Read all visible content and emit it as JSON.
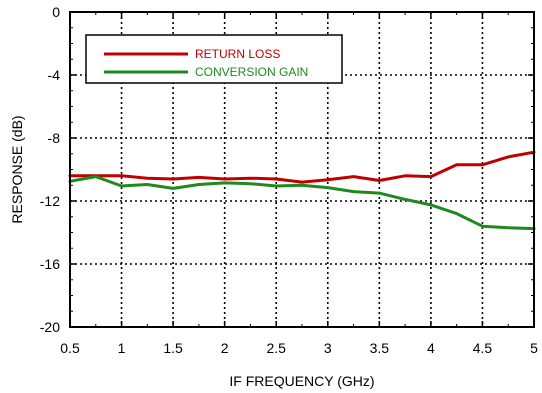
{
  "chart_data": {
    "type": "line",
    "title": "",
    "xlabel": "IF FREQUENCY (GHz)",
    "ylabel": "RESPONSE (dB)",
    "xlim": [
      0.5,
      5
    ],
    "ylim": [
      -20,
      0
    ],
    "xticks": [
      0.5,
      1,
      1.5,
      2,
      2.5,
      3,
      3.5,
      4,
      4.5,
      5
    ],
    "xtick_labels": [
      "0.5",
      "1",
      "1.5",
      "2",
      "2.5",
      "3",
      "3.5",
      "4",
      "4.5",
      "5"
    ],
    "yticks": [
      0,
      -4,
      -8,
      -12,
      -16,
      -20
    ],
    "ytick_labels": [
      "0",
      "-4",
      "-8",
      "-12",
      "-16",
      "-20"
    ],
    "grid": true,
    "legend_position": "top-left",
    "x": [
      0.5,
      0.75,
      1.0,
      1.25,
      1.5,
      1.75,
      2.0,
      2.25,
      2.5,
      2.75,
      3.0,
      3.25,
      3.5,
      3.75,
      4.0,
      4.25,
      4.5,
      4.75,
      5.0
    ],
    "series": [
      {
        "name": "RETURN LOSS",
        "color": "#c00000",
        "values": [
          -10.4,
          -10.4,
          -10.4,
          -10.55,
          -10.6,
          -10.5,
          -10.6,
          -10.55,
          -10.6,
          -10.8,
          -10.65,
          -10.45,
          -10.7,
          -10.4,
          -10.45,
          -9.7,
          -9.7,
          -9.2,
          -8.9
        ]
      },
      {
        "name": "CONVERSION GAIN",
        "color": "#1e8a1e",
        "values": [
          -10.75,
          -10.45,
          -11.05,
          -10.95,
          -11.2,
          -10.95,
          -10.85,
          -10.9,
          -11.05,
          -11.0,
          -11.15,
          -11.4,
          -11.5,
          -11.9,
          -12.25,
          -12.8,
          -13.6,
          -13.7,
          -13.75
        ]
      }
    ]
  }
}
